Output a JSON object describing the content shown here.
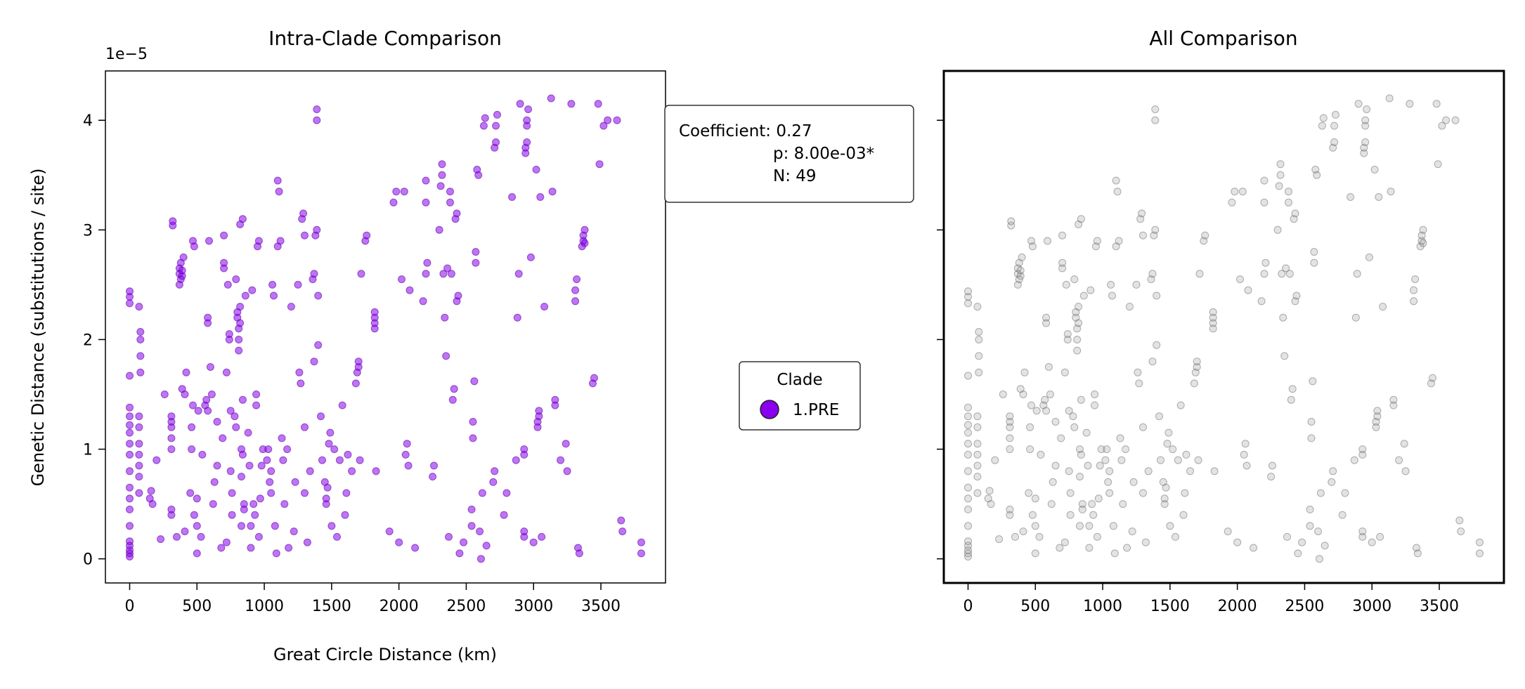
{
  "chart_data": [
    {
      "type": "scatter",
      "title": "Intra-Clade Comparison",
      "xlabel": "Great Circle Distance (km)",
      "ylabel": "Genetic Distance (substitutions / site)",
      "y_multiplier_label": "1e−5",
      "xlim": [
        -180,
        3980
      ],
      "ylim": [
        -0.22,
        4.45
      ],
      "xticks": [
        0,
        500,
        1000,
        1500,
        2000,
        2500,
        3000,
        3500
      ],
      "xtick_labels": [
        "0",
        "500",
        "1000",
        "1500",
        "2000",
        "2500",
        "3000",
        "3500"
      ],
      "yticks": [
        0,
        1,
        2,
        3,
        4
      ],
      "ytick_labels": [
        "0",
        "1",
        "2",
        "3",
        "4"
      ],
      "marker_color": "#8a00ee",
      "grid": false,
      "annotation": {
        "lines": [
          "Coefficient: 0.27",
          "p: 8.00e-03*",
          "N: 49"
        ]
      },
      "legend": {
        "title": "Clade",
        "entries": [
          {
            "label": "1.PRE",
            "color": "#8a00ee"
          }
        ],
        "placement": "right-outside"
      },
      "points": [
        [
          0,
          0.02
        ],
        [
          0,
          0.05
        ],
        [
          0,
          0.08
        ],
        [
          0,
          0.12
        ],
        [
          0,
          0.16
        ],
        [
          0,
          0.3
        ],
        [
          0,
          0.45
        ],
        [
          0,
          0.55
        ],
        [
          0,
          0.65
        ],
        [
          0,
          0.8
        ],
        [
          0,
          0.95
        ],
        [
          0,
          1.05
        ],
        [
          0,
          1.15
        ],
        [
          0,
          1.22
        ],
        [
          0,
          1.3
        ],
        [
          0,
          1.38
        ],
        [
          0,
          1.67
        ],
        [
          0,
          2.33
        ],
        [
          0,
          2.39
        ],
        [
          0,
          2.44
        ],
        [
          70,
          0.6
        ],
        [
          70,
          0.75
        ],
        [
          70,
          0.85
        ],
        [
          70,
          0.95
        ],
        [
          70,
          1.05
        ],
        [
          70,
          1.2
        ],
        [
          70,
          1.3
        ],
        [
          80,
          1.7
        ],
        [
          80,
          1.85
        ],
        [
          80,
          2.0
        ],
        [
          80,
          2.07
        ],
        [
          70,
          2.3
        ],
        [
          150,
          0.55
        ],
        [
          160,
          0.62
        ],
        [
          170,
          0.5
        ],
        [
          200,
          0.9
        ],
        [
          230,
          0.18
        ],
        [
          260,
          1.5
        ],
        [
          310,
          0.4
        ],
        [
          310,
          0.45
        ],
        [
          310,
          1.0
        ],
        [
          310,
          1.1
        ],
        [
          310,
          1.2
        ],
        [
          310,
          1.25
        ],
        [
          310,
          1.3
        ],
        [
          320,
          3.04
        ],
        [
          320,
          3.08
        ],
        [
          350,
          0.2
        ],
        [
          370,
          2.5
        ],
        [
          370,
          2.6
        ],
        [
          370,
          2.65
        ],
        [
          380,
          2.55
        ],
        [
          380,
          2.7
        ],
        [
          390,
          2.58
        ],
        [
          390,
          2.63
        ],
        [
          400,
          2.75
        ],
        [
          390,
          1.55
        ],
        [
          410,
          1.5
        ],
        [
          410,
          0.25
        ],
        [
          420,
          1.7
        ],
        [
          450,
          0.6
        ],
        [
          460,
          1.0
        ],
        [
          460,
          1.2
        ],
        [
          470,
          1.4
        ],
        [
          470,
          2.9
        ],
        [
          480,
          2.85
        ],
        [
          480,
          0.4
        ],
        [
          500,
          0.05
        ],
        [
          500,
          0.3
        ],
        [
          500,
          0.55
        ],
        [
          510,
          1.35
        ],
        [
          530,
          0.2
        ],
        [
          540,
          0.95
        ],
        [
          560,
          1.4
        ],
        [
          570,
          1.45
        ],
        [
          580,
          1.35
        ],
        [
          580,
          2.15
        ],
        [
          580,
          2.2
        ],
        [
          590,
          2.9
        ],
        [
          600,
          1.75
        ],
        [
          610,
          1.5
        ],
        [
          620,
          0.5
        ],
        [
          630,
          0.7
        ],
        [
          650,
          0.85
        ],
        [
          650,
          1.25
        ],
        [
          680,
          0.1
        ],
        [
          690,
          1.1
        ],
        [
          700,
          2.65
        ],
        [
          700,
          2.7
        ],
        [
          700,
          2.95
        ],
        [
          720,
          1.7
        ],
        [
          720,
          0.15
        ],
        [
          730,
          2.5
        ],
        [
          740,
          2.0
        ],
        [
          740,
          2.05
        ],
        [
          750,
          1.35
        ],
        [
          750,
          0.8
        ],
        [
          760,
          0.6
        ],
        [
          760,
          0.4
        ],
        [
          780,
          1.3
        ],
        [
          790,
          1.2
        ],
        [
          790,
          2.55
        ],
        [
          800,
          2.2
        ],
        [
          800,
          2.25
        ],
        [
          810,
          1.9
        ],
        [
          810,
          2.0
        ],
        [
          810,
          2.1
        ],
        [
          820,
          2.15
        ],
        [
          820,
          2.3
        ],
        [
          820,
          3.05
        ],
        [
          830,
          0.3
        ],
        [
          830,
          0.75
        ],
        [
          830,
          1.0
        ],
        [
          840,
          3.1
        ],
        [
          840,
          1.45
        ],
        [
          840,
          0.95
        ],
        [
          850,
          0.5
        ],
        [
          850,
          0.45
        ],
        [
          860,
          2.4
        ],
        [
          880,
          1.15
        ],
        [
          890,
          0.85
        ],
        [
          900,
          0.1
        ],
        [
          900,
          0.3
        ],
        [
          910,
          2.45
        ],
        [
          920,
          0.5
        ],
        [
          930,
          0.4
        ],
        [
          940,
          1.5
        ],
        [
          940,
          1.4
        ],
        [
          950,
          2.85
        ],
        [
          960,
          2.9
        ],
        [
          960,
          0.2
        ],
        [
          970,
          0.55
        ],
        [
          980,
          0.85
        ],
        [
          990,
          1.0
        ],
        [
          1020,
          0.9
        ],
        [
          1030,
          1.0
        ],
        [
          1040,
          0.7
        ],
        [
          1050,
          0.8
        ],
        [
          1050,
          0.6
        ],
        [
          1060,
          2.5
        ],
        [
          1070,
          2.4
        ],
        [
          1080,
          0.3
        ],
        [
          1090,
          0.05
        ],
        [
          1100,
          2.85
        ],
        [
          1100,
          3.45
        ],
        [
          1110,
          3.35
        ],
        [
          1120,
          2.9
        ],
        [
          1130,
          1.1
        ],
        [
          1140,
          0.9
        ],
        [
          1150,
          0.5
        ],
        [
          1170,
          1.0
        ],
        [
          1180,
          0.1
        ],
        [
          1200,
          2.3
        ],
        [
          1220,
          0.25
        ],
        [
          1230,
          0.7
        ],
        [
          1250,
          2.5
        ],
        [
          1260,
          1.7
        ],
        [
          1270,
          1.6
        ],
        [
          1280,
          3.1
        ],
        [
          1290,
          3.15
        ],
        [
          1300,
          2.95
        ],
        [
          1300,
          1.2
        ],
        [
          1300,
          0.6
        ],
        [
          1320,
          0.15
        ],
        [
          1340,
          0.8
        ],
        [
          1360,
          2.55
        ],
        [
          1370,
          2.6
        ],
        [
          1370,
          1.8
        ],
        [
          1380,
          2.95
        ],
        [
          1390,
          3.0
        ],
        [
          1390,
          4.0
        ],
        [
          1390,
          4.1
        ],
        [
          1400,
          2.4
        ],
        [
          1400,
          1.95
        ],
        [
          1420,
          1.3
        ],
        [
          1430,
          0.9
        ],
        [
          1450,
          0.7
        ],
        [
          1460,
          0.5
        ],
        [
          1460,
          0.55
        ],
        [
          1470,
          0.65
        ],
        [
          1480,
          1.05
        ],
        [
          1490,
          1.15
        ],
        [
          1500,
          0.3
        ],
        [
          1520,
          1.0
        ],
        [
          1540,
          0.2
        ],
        [
          1560,
          0.9
        ],
        [
          1580,
          1.4
        ],
        [
          1600,
          0.4
        ],
        [
          1610,
          0.6
        ],
        [
          1620,
          0.95
        ],
        [
          1650,
          0.8
        ],
        [
          1680,
          1.6
        ],
        [
          1690,
          1.7
        ],
        [
          1700,
          1.75
        ],
        [
          1700,
          1.8
        ],
        [
          1710,
          0.9
        ],
        [
          1720,
          2.6
        ],
        [
          1750,
          2.9
        ],
        [
          1760,
          2.95
        ],
        [
          1820,
          2.1
        ],
        [
          1820,
          2.15
        ],
        [
          1820,
          2.2
        ],
        [
          1820,
          2.25
        ],
        [
          1830,
          0.8
        ],
        [
          1930,
          0.25
        ],
        [
          1960,
          3.25
        ],
        [
          1980,
          3.35
        ],
        [
          2000,
          0.15
        ],
        [
          2020,
          2.55
        ],
        [
          2040,
          3.35
        ],
        [
          2050,
          0.95
        ],
        [
          2060,
          1.05
        ],
        [
          2070,
          0.85
        ],
        [
          2080,
          2.45
        ],
        [
          2120,
          0.1
        ],
        [
          2180,
          2.35
        ],
        [
          2200,
          2.6
        ],
        [
          2200,
          3.25
        ],
        [
          2200,
          3.45
        ],
        [
          2210,
          2.7
        ],
        [
          2250,
          0.75
        ],
        [
          2260,
          0.85
        ],
        [
          2300,
          3.0
        ],
        [
          2310,
          3.4
        ],
        [
          2320,
          3.5
        ],
        [
          2320,
          3.6
        ],
        [
          2330,
          2.6
        ],
        [
          2340,
          2.2
        ],
        [
          2350,
          1.85
        ],
        [
          2360,
          2.65
        ],
        [
          2370,
          0.2
        ],
        [
          2380,
          3.35
        ],
        [
          2380,
          3.25
        ],
        [
          2390,
          2.6
        ],
        [
          2400,
          1.45
        ],
        [
          2410,
          1.55
        ],
        [
          2420,
          3.1
        ],
        [
          2430,
          3.15
        ],
        [
          2430,
          2.35
        ],
        [
          2440,
          2.4
        ],
        [
          2450,
          0.05
        ],
        [
          2480,
          0.15
        ],
        [
          2540,
          0.3
        ],
        [
          2540,
          0.45
        ],
        [
          2550,
          1.1
        ],
        [
          2550,
          1.25
        ],
        [
          2560,
          1.62
        ],
        [
          2570,
          2.7
        ],
        [
          2570,
          2.8
        ],
        [
          2580,
          3.55
        ],
        [
          2590,
          3.5
        ],
        [
          2600,
          0.25
        ],
        [
          2610,
          0.0
        ],
        [
          2620,
          0.6
        ],
        [
          2630,
          3.95
        ],
        [
          2640,
          4.02
        ],
        [
          2650,
          0.12
        ],
        [
          2700,
          0.7
        ],
        [
          2710,
          0.8
        ],
        [
          2710,
          3.75
        ],
        [
          2720,
          3.8
        ],
        [
          2720,
          3.95
        ],
        [
          2730,
          4.05
        ],
        [
          2780,
          0.4
        ],
        [
          2800,
          0.6
        ],
        [
          2840,
          3.3
        ],
        [
          2870,
          0.9
        ],
        [
          2880,
          2.2
        ],
        [
          2890,
          2.6
        ],
        [
          2900,
          4.15
        ],
        [
          2930,
          0.2
        ],
        [
          2930,
          0.25
        ],
        [
          2930,
          0.95
        ],
        [
          2930,
          1.0
        ],
        [
          2940,
          3.7
        ],
        [
          2940,
          3.75
        ],
        [
          2950,
          3.8
        ],
        [
          2950,
          3.95
        ],
        [
          2950,
          4.0
        ],
        [
          2960,
          4.1
        ],
        [
          2980,
          2.75
        ],
        [
          3000,
          0.15
        ],
        [
          3020,
          3.55
        ],
        [
          3030,
          1.2
        ],
        [
          3030,
          1.25
        ],
        [
          3040,
          1.3
        ],
        [
          3040,
          1.35
        ],
        [
          3050,
          3.3
        ],
        [
          3060,
          0.2
        ],
        [
          3080,
          2.3
        ],
        [
          3130,
          4.2
        ],
        [
          3140,
          3.35
        ],
        [
          3160,
          1.4
        ],
        [
          3160,
          1.45
        ],
        [
          3200,
          0.9
        ],
        [
          3240,
          1.05
        ],
        [
          3250,
          0.8
        ],
        [
          3280,
          4.15
        ],
        [
          3310,
          2.35
        ],
        [
          3310,
          2.45
        ],
        [
          3320,
          2.55
        ],
        [
          3330,
          0.1
        ],
        [
          3340,
          0.05
        ],
        [
          3360,
          2.85
        ],
        [
          3370,
          2.9
        ],
        [
          3370,
          2.95
        ],
        [
          3380,
          3.0
        ],
        [
          3380,
          2.88
        ],
        [
          3440,
          1.6
        ],
        [
          3450,
          1.65
        ],
        [
          3480,
          4.15
        ],
        [
          3490,
          3.6
        ],
        [
          3520,
          3.95
        ],
        [
          3550,
          4.0
        ],
        [
          3620,
          4.0
        ],
        [
          3650,
          0.35
        ],
        [
          3660,
          0.25
        ],
        [
          3800,
          0.15
        ],
        [
          3800,
          0.05
        ]
      ]
    },
    {
      "type": "scatter",
      "title": "All Comparison",
      "xlim": [
        -180,
        3980
      ],
      "ylim": [
        -0.22,
        4.45
      ],
      "xticks": [
        0,
        500,
        1000,
        1500,
        2000,
        2500,
        3000,
        3500
      ],
      "xtick_labels": [
        "0",
        "500",
        "1000",
        "1500",
        "2000",
        "2500",
        "3000",
        "3500"
      ],
      "yticks": [
        0,
        1,
        2,
        3,
        4
      ],
      "marker_color": "#999999",
      "grid": false,
      "points_source": "same as Intra-Clade Comparison"
    }
  ]
}
